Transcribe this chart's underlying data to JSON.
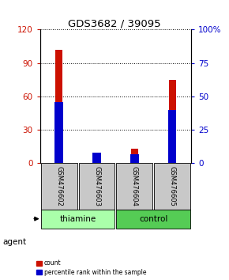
{
  "title": "GDS3682 / 39095",
  "samples": [
    "GSM476602",
    "GSM476603",
    "GSM476604",
    "GSM476605"
  ],
  "count_values": [
    102,
    5,
    13,
    75
  ],
  "percentile_values": [
    46,
    8,
    7,
    40
  ],
  "groups": [
    {
      "label": "thiamine",
      "samples": [
        0,
        1
      ],
      "color": "#aaffaa"
    },
    {
      "label": "control",
      "samples": [
        2,
        3
      ],
      "color": "#55cc55"
    }
  ],
  "count_color": "#cc1100",
  "percentile_color": "#0000cc",
  "ylim_left": [
    0,
    120
  ],
  "ylim_right": [
    0,
    100
  ],
  "yticks_left": [
    0,
    30,
    60,
    90,
    120
  ],
  "ytick_labels_left": [
    "0",
    "30",
    "60",
    "90",
    "120"
  ],
  "yticks_right": [
    0,
    25,
    50,
    75,
    100
  ],
  "ytick_labels_right": [
    "0",
    "25",
    "50",
    "75",
    "100%"
  ],
  "red_bar_width": 0.18,
  "blue_bar_width": 0.22,
  "sample_box_color": "#c8c8c8",
  "background_color": "#ffffff",
  "agent_label": "agent"
}
